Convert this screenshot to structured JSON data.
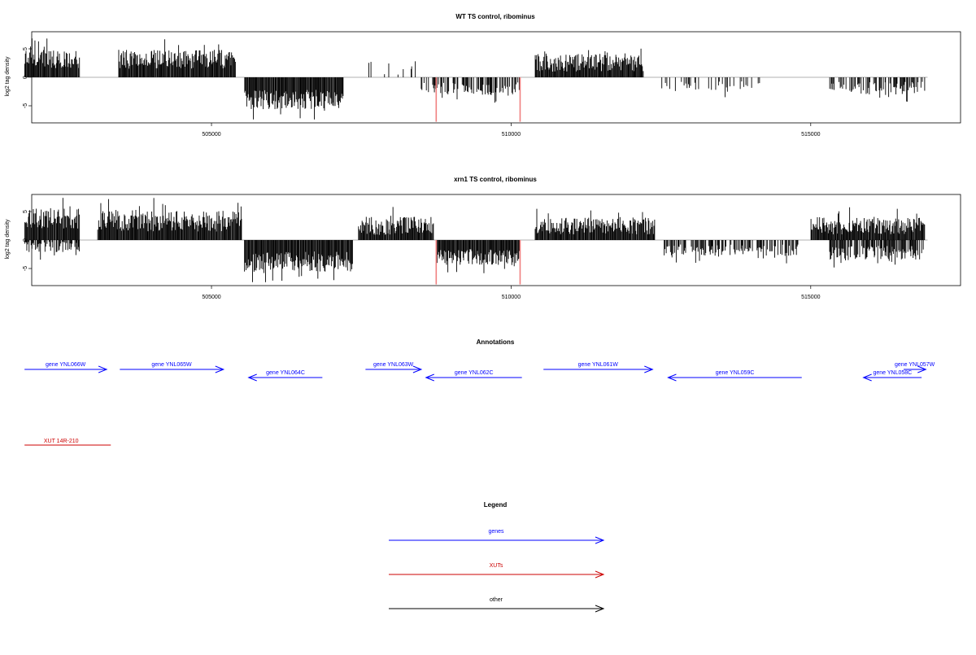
{
  "colors": {
    "signal": "#000000",
    "highlight": "#f08080",
    "gene": "#0000ff",
    "xut": "#cc0000",
    "other": "#000000",
    "zero_line": "#999999",
    "frame": "#000000"
  },
  "chart_data": [
    {
      "type": "bar",
      "title": "WT TS control, ribominus",
      "xlabel": "",
      "ylabel": "log2 tag density",
      "xlim": [
        502000,
        517500
      ],
      "ylim": [
        -8,
        8
      ],
      "xticks": [
        505000,
        510000,
        515000
      ],
      "xtick_labels": [
        "505000",
        "510000",
        "515000"
      ],
      "yticks": [
        -5,
        0,
        5
      ],
      "ytick_labels": [
        "-5",
        "0",
        "5"
      ],
      "grid": false,
      "segments": [
        {
          "start": 501880,
          "end": 502800,
          "sign": 1,
          "level": 3.2,
          "noise": 1.6
        },
        {
          "start": 503450,
          "end": 505400,
          "sign": 1,
          "level": 3.2,
          "noise": 1.7
        },
        {
          "start": 505550,
          "end": 507200,
          "sign": -1,
          "level": 3.9,
          "noise": 1.7
        },
        {
          "start": 507500,
          "end": 508400,
          "sign": 1,
          "level": 1.8,
          "noise": 1.4,
          "sparse": 0.82
        },
        {
          "start": 508450,
          "end": 510150,
          "sign": -1,
          "level": 2.0,
          "noise": 1.1,
          "sparse": 0.5
        },
        {
          "start": 510400,
          "end": 512200,
          "sign": 1,
          "level": 2.6,
          "noise": 1.6
        },
        {
          "start": 512500,
          "end": 514200,
          "sign": -1,
          "level": 1.6,
          "noise": 0.9,
          "sparse": 0.72
        },
        {
          "start": 515300,
          "end": 516900,
          "sign": -1,
          "level": 1.9,
          "noise": 1.1,
          "sparse": 0.5
        }
      ],
      "highlight_spikes": [
        {
          "x": 508750,
          "y": -7.8
        },
        {
          "x": 510150,
          "y": -7.8
        }
      ]
    },
    {
      "type": "bar",
      "title": "xrn1 TS control, ribominus",
      "xlabel": "",
      "ylabel": "log2 tag density",
      "xlim": [
        502000,
        517500
      ],
      "ylim": [
        -8,
        8
      ],
      "xticks": [
        505000,
        510000,
        515000
      ],
      "xtick_labels": [
        "505000",
        "510000",
        "515000"
      ],
      "yticks": [
        -5,
        0,
        5
      ],
      "ytick_labels": [
        "-5",
        "0",
        "5"
      ],
      "grid": false,
      "segments": [
        {
          "start": 501880,
          "end": 502800,
          "sign": 1,
          "level": 3.8,
          "noise": 1.8
        },
        {
          "start": 501880,
          "end": 502800,
          "sign": -1,
          "level": 1.2,
          "noise": 1.0,
          "sparse": 0.3
        },
        {
          "start": 503100,
          "end": 505500,
          "sign": 1,
          "level": 3.3,
          "noise": 1.8
        },
        {
          "start": 505550,
          "end": 507350,
          "sign": -1,
          "level": 3.8,
          "noise": 1.8
        },
        {
          "start": 507450,
          "end": 508700,
          "sign": 1,
          "level": 2.5,
          "noise": 1.6
        },
        {
          "start": 508750,
          "end": 510150,
          "sign": -1,
          "level": 3.0,
          "noise": 1.4
        },
        {
          "start": 510400,
          "end": 512400,
          "sign": 1,
          "level": 2.5,
          "noise": 1.5
        },
        {
          "start": 512550,
          "end": 514800,
          "sign": -1,
          "level": 1.8,
          "noise": 1.0,
          "sparse": 0.4
        },
        {
          "start": 515000,
          "end": 516900,
          "sign": 1,
          "level": 2.5,
          "noise": 1.5
        },
        {
          "start": 515300,
          "end": 516900,
          "sign": -1,
          "level": 2.3,
          "noise": 1.3,
          "sparse": 0.25
        }
      ],
      "highlight_spikes": [
        {
          "x": 508750,
          "y": -7.8
        },
        {
          "x": 510150,
          "y": -7.8
        }
      ]
    }
  ],
  "annotations": {
    "title": "Annotations",
    "genes": [
      {
        "label": "gene YNL066W",
        "start": 501880,
        "end": 503250,
        "strand": "+",
        "row": 0
      },
      {
        "label": "gene YNL065W",
        "start": 503470,
        "end": 505200,
        "strand": "+",
        "row": 0
      },
      {
        "label": "gene YNL064C",
        "start": 505620,
        "end": 506850,
        "strand": "-",
        "row": 1
      },
      {
        "label": "gene YNL063W",
        "start": 507570,
        "end": 508500,
        "strand": "+",
        "row": 0
      },
      {
        "label": "gene YNL062C",
        "start": 508580,
        "end": 510180,
        "strand": "-",
        "row": 1
      },
      {
        "label": "gene YNL061W",
        "start": 510540,
        "end": 512360,
        "strand": "+",
        "row": 0
      },
      {
        "label": "gene YNL059C",
        "start": 512620,
        "end": 514850,
        "strand": "-",
        "row": 1
      },
      {
        "label": "gene YNL057W",
        "start": 516550,
        "end": 516920,
        "strand": "+",
        "row": 0
      },
      {
        "label": "gene YNL058C",
        "start": 515880,
        "end": 516850,
        "strand": "-",
        "row": 1
      }
    ],
    "xuts": [
      {
        "label": "XUT 14R-210",
        "start": 501880,
        "end": 503320
      }
    ]
  },
  "legend": {
    "title": "Legend",
    "items": [
      {
        "label": "genes",
        "color": "#0000ff"
      },
      {
        "label": "XUTs",
        "color": "#cc0000"
      },
      {
        "label": "other",
        "color": "#000000"
      }
    ]
  }
}
